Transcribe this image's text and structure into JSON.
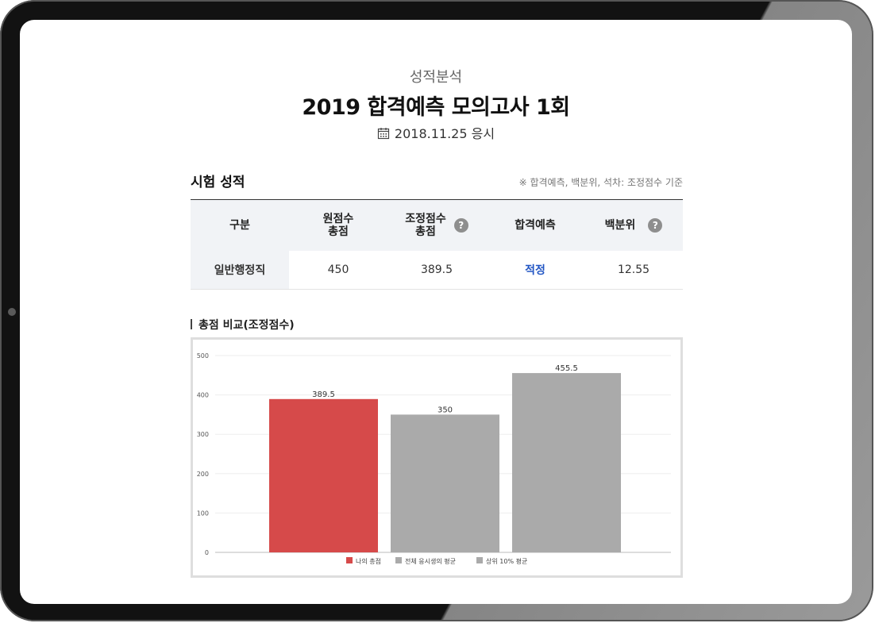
{
  "header": {
    "subtitle": "성적분석",
    "title": "2019 합격예측 모의고사 1회",
    "date": "2018.11.25 응시"
  },
  "section": {
    "title": "시험 성적",
    "note": "※ 합격예측, 백분위, 석차: 조정점수 기준"
  },
  "table": {
    "headers": {
      "category": "구분",
      "raw_total_1": "원점수",
      "raw_total_2": "총점",
      "adjusted_total_1": "조정점수",
      "adjusted_total_2": "총점",
      "prediction": "합격예측",
      "percentile": "백분위"
    },
    "help_icon": "question-circle-icon",
    "row": {
      "category": "일반행정직",
      "raw_total": "450",
      "adjusted_total": "389.5",
      "prediction": "적정",
      "percentile": "12.55"
    }
  },
  "chart_section": {
    "title": "총점 비교(조정점수)"
  },
  "chart_data": {
    "type": "bar",
    "title": "",
    "xlabel": "",
    "ylabel": "",
    "ylim": [
      0,
      500
    ],
    "yticks": [
      0,
      100,
      200,
      300,
      400,
      500
    ],
    "grid": true,
    "legend_position": "bottom",
    "categories": [
      "나의 총점",
      "전체 응시생의 평균",
      "상위 10% 평균"
    ],
    "values": [
      389.5,
      350,
      455.5
    ],
    "value_labels": [
      "389.5",
      "350",
      "455.5"
    ],
    "colors": [
      "#d64a4a",
      "#aaaaaa",
      "#aaaaaa"
    ]
  },
  "colors": {
    "accent_blue": "#2256c4",
    "my_score_red": "#d64a4a",
    "average_gray": "#aaaaaa"
  }
}
